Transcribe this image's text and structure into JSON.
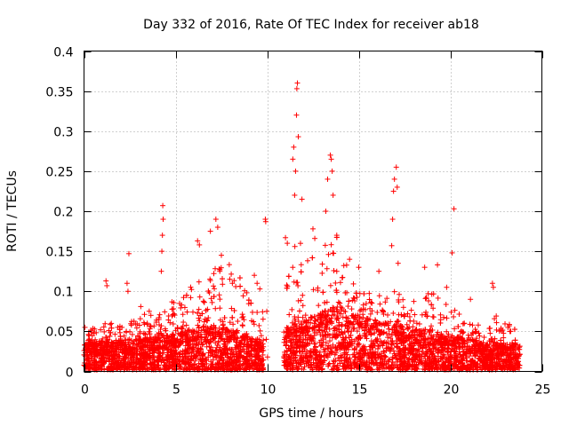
{
  "chart_data": {
    "type": "scatter",
    "title": "Day 332 of 2016, Rate Of TEC Index for receiver ab18",
    "xlabel": "GPS time / hours",
    "ylabel": "ROTI / TECUs",
    "xlim": [
      0,
      25
    ],
    "ylim": [
      0,
      0.4
    ],
    "xticks": [
      0,
      5,
      10,
      15,
      20,
      25
    ],
    "yticks": [
      0,
      0.05,
      0.1,
      0.15,
      0.2,
      0.25,
      0.3,
      0.35,
      0.4
    ],
    "xtick_labels": [
      "0",
      "5",
      "10",
      "15",
      "20",
      "25"
    ],
    "ytick_labels": [
      "0",
      "0.05",
      "0.1",
      "0.15",
      "0.2",
      "0.25",
      "0.3",
      "0.35",
      "0.4"
    ],
    "grid": true,
    "marker": "plus",
    "color": "#ff0000",
    "gap_hours": [
      9.8,
      10.9
    ],
    "time_span_hours": [
      0,
      23.8
    ],
    "envelope": {
      "x": [
        0,
        1,
        2,
        3,
        4,
        5,
        6,
        7,
        8,
        9,
        9.8,
        10.9,
        11.5,
        12,
        13,
        13.8,
        14.5,
        15,
        16,
        17,
        18,
        19,
        20,
        21,
        22,
        22.5,
        23.8
      ],
      "base": [
        0.025,
        0.025,
        0.025,
        0.027,
        0.03,
        0.033,
        0.04,
        0.045,
        0.04,
        0.03,
        0.025,
        0.04,
        0.05,
        0.05,
        0.06,
        0.07,
        0.06,
        0.055,
        0.05,
        0.045,
        0.04,
        0.035,
        0.03,
        0.03,
        0.02,
        0.02,
        0.02
      ],
      "peak": [
        0.05,
        0.06,
        0.06,
        0.07,
        0.08,
        0.09,
        0.11,
        0.13,
        0.14,
        0.1,
        0.08,
        0.13,
        0.18,
        0.15,
        0.16,
        0.18,
        0.12,
        0.1,
        0.1,
        0.1,
        0.09,
        0.1,
        0.08,
        0.07,
        0.05,
        0.07,
        0.05
      ]
    },
    "notable_points": [
      {
        "x": 0.05,
        "y": 0.055
      },
      {
        "x": 1.2,
        "y": 0.113
      },
      {
        "x": 1.25,
        "y": 0.107
      },
      {
        "x": 2.35,
        "y": 0.11
      },
      {
        "x": 2.45,
        "y": 0.147
      },
      {
        "x": 2.4,
        "y": 0.1
      },
      {
        "x": 3.1,
        "y": 0.081
      },
      {
        "x": 4.3,
        "y": 0.207
      },
      {
        "x": 4.32,
        "y": 0.19
      },
      {
        "x": 4.28,
        "y": 0.17
      },
      {
        "x": 4.25,
        "y": 0.15
      },
      {
        "x": 4.22,
        "y": 0.125
      },
      {
        "x": 6.2,
        "y": 0.163
      },
      {
        "x": 6.3,
        "y": 0.158
      },
      {
        "x": 6.9,
        "y": 0.175
      },
      {
        "x": 7.2,
        "y": 0.19
      },
      {
        "x": 7.3,
        "y": 0.18
      },
      {
        "x": 7.5,
        "y": 0.145
      },
      {
        "x": 8.1,
        "y": 0.11
      },
      {
        "x": 9.3,
        "y": 0.12
      },
      {
        "x": 9.45,
        "y": 0.11
      },
      {
        "x": 9.6,
        "y": 0.103
      },
      {
        "x": 9.9,
        "y": 0.19
      },
      {
        "x": 9.92,
        "y": 0.187
      },
      {
        "x": 9.98,
        "y": 0.075
      },
      {
        "x": 9.95,
        "y": 0.04
      },
      {
        "x": 10.02,
        "y": 0.018
      },
      {
        "x": 11.0,
        "y": 0.167
      },
      {
        "x": 11.1,
        "y": 0.16
      },
      {
        "x": 11.4,
        "y": 0.265
      },
      {
        "x": 11.45,
        "y": 0.28
      },
      {
        "x": 11.5,
        "y": 0.22
      },
      {
        "x": 11.55,
        "y": 0.25
      },
      {
        "x": 11.6,
        "y": 0.32
      },
      {
        "x": 11.62,
        "y": 0.353
      },
      {
        "x": 11.65,
        "y": 0.36
      },
      {
        "x": 11.7,
        "y": 0.293
      },
      {
        "x": 11.9,
        "y": 0.215
      },
      {
        "x": 12.5,
        "y": 0.178
      },
      {
        "x": 12.6,
        "y": 0.166
      },
      {
        "x": 13.2,
        "y": 0.2
      },
      {
        "x": 13.3,
        "y": 0.24
      },
      {
        "x": 13.45,
        "y": 0.27
      },
      {
        "x": 13.5,
        "y": 0.265
      },
      {
        "x": 13.55,
        "y": 0.25
      },
      {
        "x": 13.6,
        "y": 0.22
      },
      {
        "x": 13.8,
        "y": 0.17
      },
      {
        "x": 14.5,
        "y": 0.14
      },
      {
        "x": 15.0,
        "y": 0.13
      },
      {
        "x": 16.1,
        "y": 0.125
      },
      {
        "x": 16.9,
        "y": 0.225
      },
      {
        "x": 16.95,
        "y": 0.24
      },
      {
        "x": 17.05,
        "y": 0.255
      },
      {
        "x": 17.1,
        "y": 0.23
      },
      {
        "x": 16.85,
        "y": 0.19
      },
      {
        "x": 16.8,
        "y": 0.157
      },
      {
        "x": 17.15,
        "y": 0.135
      },
      {
        "x": 18.6,
        "y": 0.13
      },
      {
        "x": 19.3,
        "y": 0.133
      },
      {
        "x": 19.8,
        "y": 0.105
      },
      {
        "x": 20.2,
        "y": 0.203
      },
      {
        "x": 20.1,
        "y": 0.148
      },
      {
        "x": 21.1,
        "y": 0.09
      },
      {
        "x": 22.3,
        "y": 0.11
      },
      {
        "x": 22.35,
        "y": 0.105
      },
      {
        "x": 23.3,
        "y": 0.05
      }
    ]
  }
}
